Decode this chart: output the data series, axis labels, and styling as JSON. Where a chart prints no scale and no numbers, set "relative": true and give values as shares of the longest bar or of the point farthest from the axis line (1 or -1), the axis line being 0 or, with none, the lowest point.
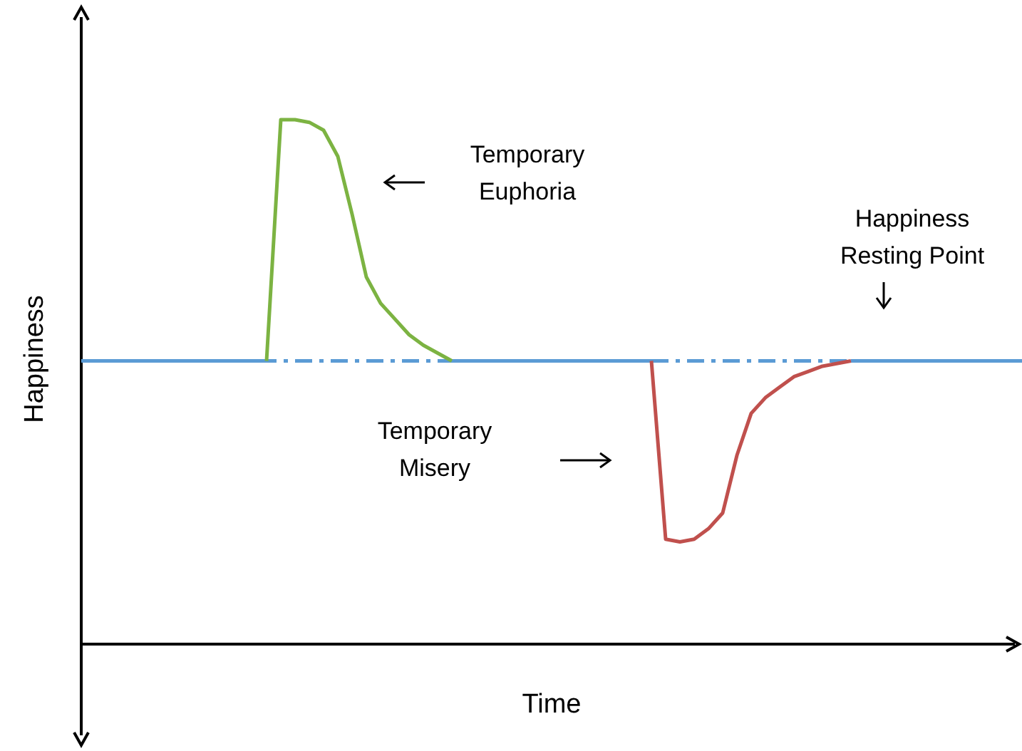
{
  "chart_data": {
    "type": "line",
    "relative": true,
    "xlabel": "Time",
    "ylabel": "Happiness",
    "categories": [
      null,
      null,
      null,
      null,
      null,
      null,
      null,
      null,
      null,
      null,
      null,
      null,
      null,
      null,
      null,
      null,
      null,
      null,
      null,
      null,
      null,
      null,
      null,
      null,
      null,
      null,
      null,
      null,
      null,
      null,
      null,
      null,
      null,
      null,
      null,
      null,
      null,
      null,
      null,
      null,
      null,
      null,
      null,
      null,
      null,
      null,
      null,
      null,
      null,
      null,
      null,
      null,
      null,
      null,
      null,
      null,
      null,
      null,
      null,
      null,
      null,
      null,
      null,
      null,
      null,
      null,
      null
    ],
    "series": [
      {
        "color": "#5b9bd5",
        "line_style": "dashed",
        "values": [
          0.54,
          0.54,
          0.54,
          0.54,
          0.54,
          0.54,
          0.54,
          0.54,
          0.54,
          0.54,
          0.54,
          0.54,
          0.54,
          0.54,
          0.54,
          0.54,
          0.54,
          0.54,
          0.54,
          0.54,
          0.54,
          0.54,
          0.54,
          0.54,
          0.54,
          0.54,
          0.54,
          0.54,
          0.54,
          0.54,
          0.54,
          0.54,
          0.54,
          0.54,
          0.54,
          0.54,
          0.54,
          0.54,
          0.54,
          0.54,
          0.54,
          0.54,
          0.54,
          0.54,
          0.54,
          0.54,
          0.54,
          0.54,
          0.54,
          0.54,
          0.54,
          0.54,
          0.54,
          0.54,
          0.54,
          0.54,
          0.54,
          0.54,
          0.54,
          0.54,
          0.54,
          0.54,
          0.54,
          0.54,
          0.54,
          0.54,
          0.54
        ]
      },
      {
        "color": "#5b9bd5",
        "line_style": "solid",
        "values": [
          0.54,
          0.54,
          0.54,
          0.54,
          0.54,
          0.54,
          0.54,
          0.54,
          0.54,
          0.54,
          0.54,
          0.54,
          0.54,
          0.54,
          null,
          null,
          null,
          null,
          null,
          null,
          null,
          null,
          null,
          null,
          null,
          null,
          0.54,
          0.54,
          0.54,
          0.54,
          0.54,
          0.54,
          0.54,
          0.54,
          0.54,
          0.54,
          0.54,
          0.54,
          0.54,
          0.54,
          0.54,
          null,
          null,
          null,
          null,
          null,
          null,
          null,
          null,
          null,
          null,
          null,
          null,
          null,
          0.54,
          0.54,
          0.54,
          0.54,
          0.54,
          0.54,
          0.54,
          0.54,
          0.54,
          0.54,
          0.54,
          0.54,
          0.54
        ]
      },
      {
        "color": "#7cb342",
        "line_style": "solid",
        "values": [
          null,
          null,
          null,
          null,
          null,
          null,
          null,
          null,
          null,
          null,
          null,
          null,
          null,
          0.54,
          1,
          1,
          0.995,
          0.98,
          0.93,
          0.82,
          0.7,
          0.65,
          0.62,
          0.59,
          0.57,
          0.555,
          0.54,
          null,
          null,
          null,
          null,
          null,
          null,
          null,
          null,
          null,
          null,
          null,
          null,
          null,
          null,
          null,
          null,
          null,
          null,
          null,
          null,
          null,
          null,
          null,
          null,
          null,
          null,
          null,
          null,
          null,
          null,
          null,
          null,
          null,
          null,
          null,
          null,
          null,
          null,
          null,
          null
        ]
      },
      {
        "color": "#c0504d",
        "line_style": "solid",
        "values": [
          null,
          null,
          null,
          null,
          null,
          null,
          null,
          null,
          null,
          null,
          null,
          null,
          null,
          null,
          null,
          null,
          null,
          null,
          null,
          null,
          null,
          null,
          null,
          null,
          null,
          null,
          null,
          null,
          null,
          null,
          null,
          null,
          null,
          null,
          null,
          null,
          null,
          null,
          null,
          null,
          0.54,
          0.2,
          0.195,
          0.2,
          0.22,
          0.25,
          0.36,
          0.44,
          0.47,
          0.49,
          0.51,
          0.52,
          0.53,
          0.535,
          0.54,
          null,
          null,
          null,
          null,
          null,
          null,
          null,
          null,
          null,
          null,
          null,
          null
        ]
      }
    ],
    "annotations": [
      "Temporary\nEuphoria",
      "Happiness\nResting Point",
      "Temporary\nMisery"
    ]
  }
}
